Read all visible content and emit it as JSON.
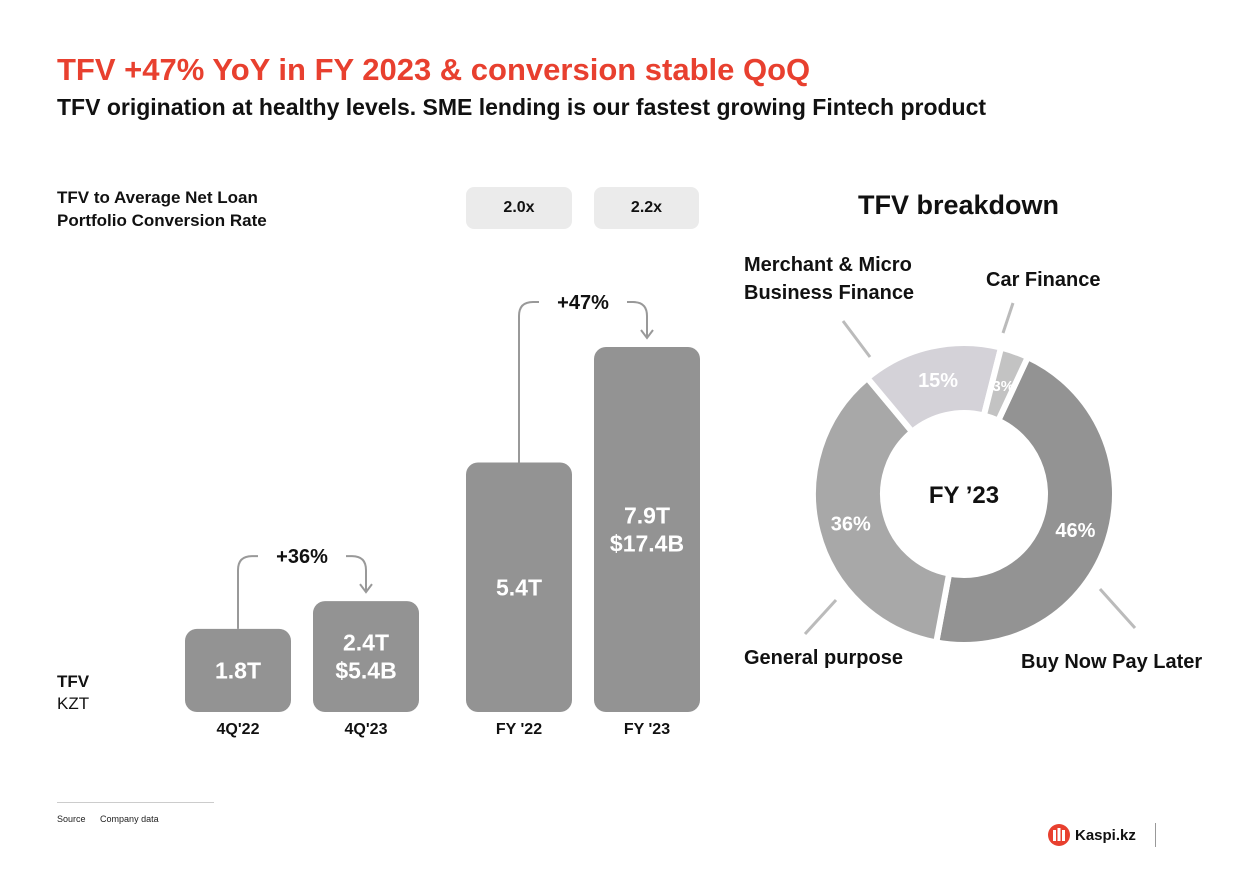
{
  "title": "TFV +47% YoY in FY 2023 & conversion stable QoQ",
  "subtitle": "TFV origination at healthy levels. SME lending is our fastest growing Fintech product",
  "colors": {
    "title": "#e8402f",
    "bar": "#939393",
    "pill": "#ebebeb",
    "arrow": "#999999",
    "donut": [
      "#939393",
      "#a8a8a8",
      "#d4d2d8",
      "#c3c3c3"
    ]
  },
  "conversion": {
    "label_lines": [
      "TFV to Average Net Loan",
      "Portfolio Conversion Rate"
    ],
    "values": [
      "2.0x",
      "2.2x"
    ]
  },
  "tfv_label": {
    "metric": "TFV",
    "unit": "KZT"
  },
  "chart_data": [
    {
      "type": "bar",
      "title": "",
      "categories": [
        "4Q'22",
        "4Q'23",
        "FY '22",
        "FY '23"
      ],
      "series": [
        {
          "values": [
            1.8,
            2.4,
            5.4,
            7.9
          ]
        }
      ],
      "data_labels": [
        [
          "1.8T"
        ],
        [
          "2.4T",
          "$5.4B"
        ],
        [
          "5.4T"
        ],
        [
          "7.9T",
          "$17.4B"
        ]
      ],
      "unit": "KZT",
      "growth": [
        {
          "from": 0,
          "to": 1,
          "label": "+36%"
        },
        {
          "from": 2,
          "to": 3,
          "label": "+47%"
        }
      ],
      "grid": false
    },
    {
      "type": "pie",
      "title": "TFV breakdown",
      "center_label": "FY ’23",
      "slices": [
        {
          "name": "Buy Now Pay Later",
          "value": 46,
          "label": "46%"
        },
        {
          "name": "General purpose",
          "value": 36,
          "label": "36%"
        },
        {
          "name": "Merchant & Micro Business Finance",
          "name_lines": [
            "Merchant & Micro",
            "Business Finance"
          ],
          "value": 15,
          "label": "15%"
        },
        {
          "name": "Car Finance",
          "value": 3,
          "label": "3%"
        }
      ]
    }
  ],
  "footer": {
    "source_label": "Source",
    "source_value": "Company data",
    "logo_text": "Kaspi.kz"
  }
}
